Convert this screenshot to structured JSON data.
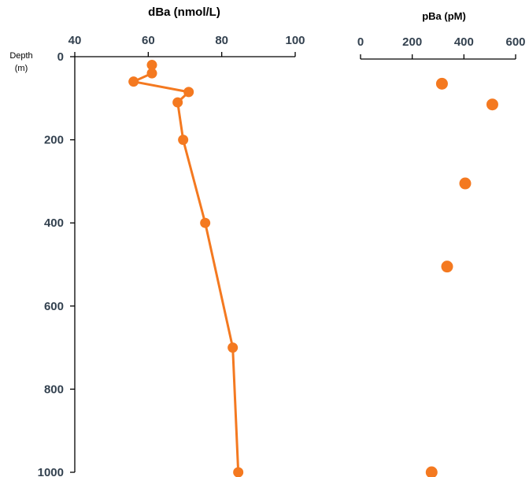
{
  "chart_data": [
    {
      "type": "line",
      "title": "dBa (nmol/L)",
      "ylabel": "Depth",
      "ylabel_unit": "(m)",
      "xlim": [
        40,
        100
      ],
      "ylim": [
        1000,
        0
      ],
      "x_ticks": [
        "40",
        "60",
        "80",
        "100"
      ],
      "y_ticks": [
        "0",
        "200",
        "400",
        "600",
        "800",
        "1000"
      ],
      "series": [
        {
          "color": "#f47920",
          "points": [
            {
              "x": 61,
              "y": 20
            },
            {
              "x": 61,
              "y": 40
            },
            {
              "x": 56,
              "y": 60
            },
            {
              "x": 71,
              "y": 85
            },
            {
              "x": 68,
              "y": 110
            },
            {
              "x": 69.5,
              "y": 200
            },
            {
              "x": 75.5,
              "y": 400
            },
            {
              "x": 83,
              "y": 700
            },
            {
              "x": 84.5,
              "y": 1000
            }
          ]
        }
      ]
    },
    {
      "type": "scatter",
      "title": "pBa (pM)",
      "xlim": [
        0,
        600
      ],
      "ylim": [
        1000,
        0
      ],
      "x_ticks": [
        "0",
        "200",
        "400",
        "600"
      ],
      "series": [
        {
          "color": "#f47920",
          "points": [
            {
              "x": 315,
              "y": 65
            },
            {
              "x": 510,
              "y": 115
            },
            {
              "x": 405,
              "y": 305
            },
            {
              "x": 335,
              "y": 505
            },
            {
              "x": 275,
              "y": 1000
            }
          ]
        }
      ]
    }
  ]
}
